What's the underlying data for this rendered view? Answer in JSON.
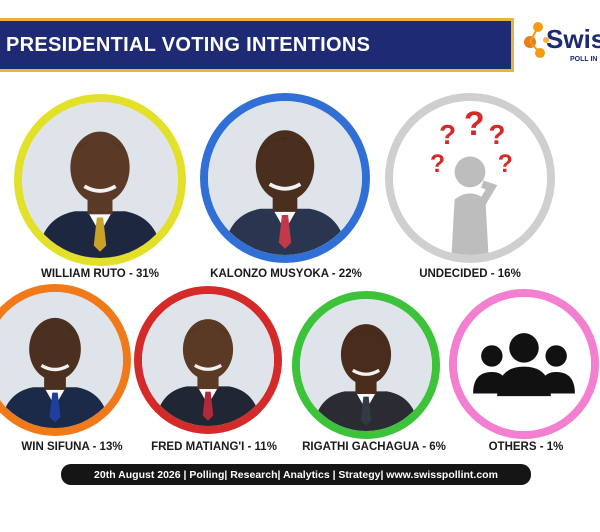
{
  "header": {
    "title": "PRESIDENTIAL VOTING INTENTIONS"
  },
  "logo": {
    "name": "Swis",
    "subtitle": "POLL IN",
    "icon": "molecule-logo-icon",
    "accent": "#f39c12"
  },
  "footer": {
    "text": "20th August 2026 | Polling| Research| Analytics | Strategy| www.swisspollint.com"
  },
  "colors": {
    "banner": "#1e2a74",
    "banner_border": "#e8b53a",
    "footer_bg": "#151515"
  },
  "chart_data": {
    "type": "bar",
    "title": "PRESIDENTIAL VOTING INTENTIONS",
    "categories": [
      "WILLIAM RUTO",
      "KALONZO MUSYOKA",
      "UNDECIDED",
      "WIN SIFUNA",
      "FRED MATIANG'I",
      "RIGATHI GACHAGUA",
      "OTHERS"
    ],
    "values": [
      31,
      22,
      16,
      13,
      11,
      6,
      1
    ],
    "unit": "%",
    "labels": [
      "WILLIAM RUTO - 31%",
      "KALONZO MUSYOKA - 22%",
      "UNDECIDED - 16%",
      "WIN SIFUNA - 13%",
      "FRED MATIANG'I - 11%",
      "RIGATHI GACHAGUA - 6%",
      "OTHERS - 1%"
    ],
    "ring_colors": [
      "#e3e02a",
      "#2f6fd6",
      "#cfcfcf",
      "#f07a1a",
      "#d42a2a",
      "#3cc33a",
      "#f27fd0"
    ],
    "portraits": [
      "portrait-photo",
      "portrait-photo",
      "question-thinker-icon",
      "portrait-photo",
      "portrait-photo",
      "portrait-photo",
      "group-people-icon"
    ]
  }
}
